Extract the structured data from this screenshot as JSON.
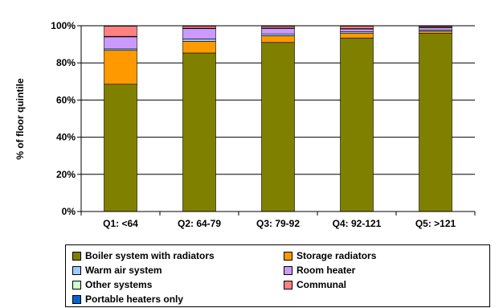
{
  "chart_data": {
    "type": "bar",
    "stacked": true,
    "categories": [
      "Q1: <64",
      "Q2: 64-79",
      "Q3: 79-92",
      "Q4: 92-121",
      "Q5: >121"
    ],
    "series": [
      {
        "name": "Boiler system with radiators",
        "color": "#808000",
        "values": [
          68.5,
          85.3,
          91.0,
          93.4,
          95.9
        ]
      },
      {
        "name": "Storage radiators",
        "color": "#FF9900",
        "values": [
          18.2,
          6.3,
          3.6,
          2.6,
          1.1
        ]
      },
      {
        "name": "Warm air system",
        "color": "#99CCFF",
        "values": [
          0.8,
          1.3,
          1.0,
          0.8,
          0.7
        ]
      },
      {
        "name": "Room heater",
        "color": "#CC99FF",
        "values": [
          6.5,
          5.5,
          2.9,
          1.4,
          1.2
        ]
      },
      {
        "name": "Other systems",
        "color": "#CCFFCC",
        "values": [
          0.3,
          0.3,
          0.3,
          0.3,
          0.3
        ]
      },
      {
        "name": "Communal",
        "color": "#FF8080",
        "values": [
          5.5,
          1.1,
          0.9,
          1.3,
          0.6
        ]
      },
      {
        "name": "Portable heaters only",
        "color": "#0066CC",
        "values": [
          0.2,
          0.2,
          0.3,
          0.2,
          0.2
        ]
      }
    ],
    "yticks": [
      "0%",
      "20%",
      "40%",
      "60%",
      "80%",
      "100%"
    ],
    "ylim": [
      0,
      100
    ],
    "ylabel": "% of floor quintile",
    "xlabel": "",
    "grid": true,
    "legend_position": "bottom",
    "plot_background": "#ffffff"
  }
}
